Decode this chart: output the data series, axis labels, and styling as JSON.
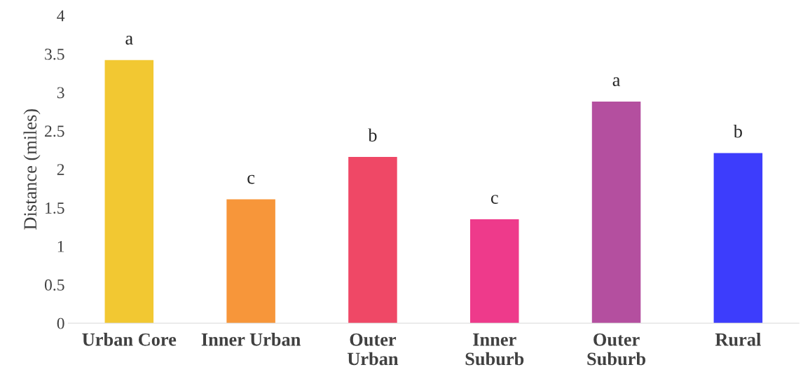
{
  "chart_data": {
    "type": "bar",
    "ylabel": "Distance (miles)",
    "categories": [
      "Urban Core",
      "Inner Urban",
      "Outer\nUrban",
      "Inner\nSuburb",
      "Outer\nSuburb",
      "Rural"
    ],
    "values": [
      3.42,
      1.61,
      2.16,
      1.35,
      2.88,
      2.21
    ],
    "colors": [
      "#f2c832",
      "#f7963a",
      "#ef4866",
      "#ee3a8b",
      "#b44f9f",
      "#3d3dfc"
    ],
    "ylim": [
      0,
      4
    ],
    "yticks": [
      0,
      0.5,
      1,
      1.5,
      2,
      2.5,
      3,
      3.5,
      4
    ],
    "grid": false,
    "annotations": [
      {
        "text": "a",
        "x": "Urban Core",
        "y": 3.42
      },
      {
        "text": "c",
        "x": "Inner Urban",
        "y": 1.61
      },
      {
        "text": "b",
        "x": "Outer\nUrban",
        "y": 2.16
      },
      {
        "text": "c",
        "x": "Inner\nSuburb",
        "y": 1.35
      },
      {
        "text": "a",
        "x": "Outer\nSuburb",
        "y": 2.88
      },
      {
        "text": "b",
        "x": "Rural",
        "y": 2.21
      }
    ]
  }
}
